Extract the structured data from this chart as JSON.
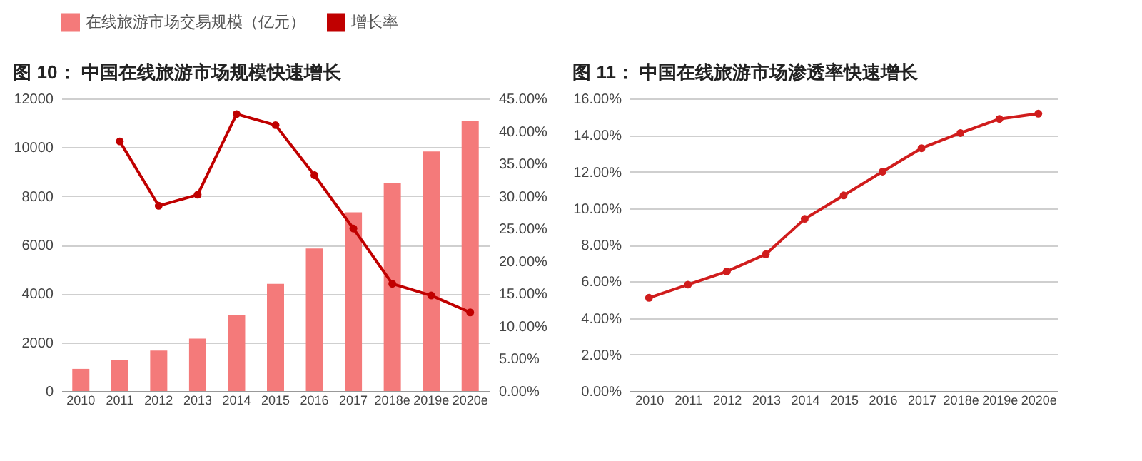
{
  "chart_data": [
    {
      "type": "bar",
      "title": "图 10：  中国在线旅游市场规模快速增长",
      "categories": [
        "2010",
        "2011",
        "2012",
        "2013",
        "2014",
        "2015",
        "2016",
        "2017",
        "2018e",
        "2019e",
        "2020e"
      ],
      "series": [
        {
          "name": "在线旅游市场交易规模（亿元）",
          "color": "#f47a7a",
          "values": [
            910,
            1280,
            1660,
            2150,
            3100,
            4400,
            5850,
            7330,
            8550,
            9830,
            11070
          ]
        },
        {
          "name": "增长率",
          "type": "line",
          "axis": "y2",
          "color": "#c00000",
          "values": [
            null,
            38.4,
            28.5,
            30.2,
            42.6,
            40.9,
            33.2,
            25.0,
            16.5,
            14.7,
            12.1
          ]
        }
      ],
      "ylim": [
        0,
        12000
      ],
      "yticks": [
        0,
        2000,
        4000,
        6000,
        8000,
        10000,
        12000
      ],
      "y2lim": [
        0,
        45
      ],
      "y2ticks": [
        {
          "value": 0,
          "label": "0.00%"
        },
        {
          "value": 5,
          "label": "5.00%"
        },
        {
          "value": 10,
          "label": "10.00%"
        },
        {
          "value": 15,
          "label": "15.00%"
        },
        {
          "value": 20,
          "label": "20.00%"
        },
        {
          "value": 25,
          "label": "25.00%"
        },
        {
          "value": 30,
          "label": "30.00%"
        },
        {
          "value": 35,
          "label": "35.00%"
        },
        {
          "value": 40,
          "label": "40.00%"
        },
        {
          "value": 45,
          "label": "45.00%"
        }
      ],
      "grid": "y",
      "legend": "top",
      "marker": "circle"
    },
    {
      "type": "line",
      "title": "图 11：  中国在线旅游市场渗透率快速增长",
      "categories": [
        "2010",
        "2011",
        "2012",
        "2013",
        "2014",
        "2015",
        "2016",
        "2017",
        "2018e",
        "2019e",
        "2020e"
      ],
      "values": [
        5.1,
        5.82,
        6.54,
        7.48,
        9.42,
        10.7,
        12.0,
        13.28,
        14.11,
        14.88,
        15.17
      ],
      "color": "#d01c1c",
      "ylim": [
        0,
        16
      ],
      "yticks": [
        {
          "value": 0,
          "label": "0.00%"
        },
        {
          "value": 2,
          "label": "2.00%"
        },
        {
          "value": 4,
          "label": "4.00%"
        },
        {
          "value": 6,
          "label": "6.00%"
        },
        {
          "value": 8,
          "label": "8.00%"
        },
        {
          "value": 10,
          "label": "10.00%"
        },
        {
          "value": 12,
          "label": "12.00%"
        },
        {
          "value": 14,
          "label": "14.00%"
        },
        {
          "value": 16,
          "label": "16.00%"
        }
      ],
      "grid": "y",
      "marker": "circle"
    }
  ]
}
